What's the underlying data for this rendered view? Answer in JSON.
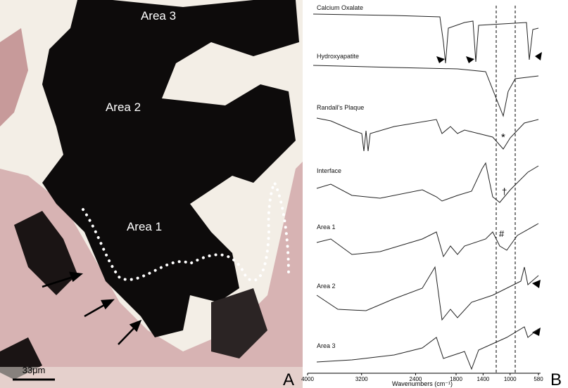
{
  "panel_a": {
    "labels": [
      "Area 3",
      "Area 2",
      "Area 1"
    ],
    "scale_bar": "33μm",
    "letter": "A"
  },
  "panel_b": {
    "spectra": [
      "Calcium Oxalate",
      "Hydroxyapatite",
      "Randall's Plaque",
      "Interface",
      "Area 1",
      "Area 2",
      "Area 3"
    ],
    "symbols": [
      "*",
      "†",
      "#"
    ],
    "x_axis": {
      "label": "Wavenumbers (cm⁻¹)",
      "ticks": [
        4000,
        3200,
        2400,
        1800,
        1400,
        1000,
        580
      ]
    },
    "letter": "B"
  }
}
